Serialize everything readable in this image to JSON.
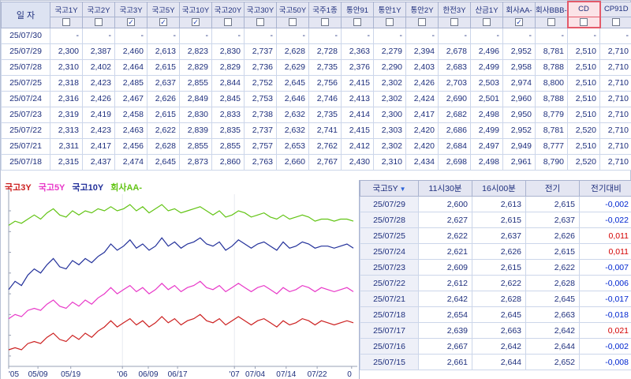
{
  "icons": {
    "check": "✓",
    "sort_down": "▼"
  },
  "top_table": {
    "date_header": "일 자",
    "columns": [
      {
        "label": "국고1Y",
        "checked": false,
        "highlighted": false
      },
      {
        "label": "국고2Y",
        "checked": false,
        "highlighted": false
      },
      {
        "label": "국고3Y",
        "checked": true,
        "highlighted": false
      },
      {
        "label": "국고5Y",
        "checked": true,
        "highlighted": false
      },
      {
        "label": "국고10Y",
        "checked": true,
        "highlighted": false
      },
      {
        "label": "국고20Y",
        "checked": false,
        "highlighted": false
      },
      {
        "label": "국고30Y",
        "checked": false,
        "highlighted": false
      },
      {
        "label": "국고50Y",
        "checked": false,
        "highlighted": false
      },
      {
        "label": "국주1종",
        "checked": false,
        "highlighted": false
      },
      {
        "label": "통안91",
        "checked": false,
        "highlighted": false
      },
      {
        "label": "통안1Y",
        "checked": false,
        "highlighted": false
      },
      {
        "label": "통안2Y",
        "checked": false,
        "highlighted": false
      },
      {
        "label": "한전3Y",
        "checked": false,
        "highlighted": false
      },
      {
        "label": "산금1Y",
        "checked": false,
        "highlighted": false
      },
      {
        "label": "회사AA-",
        "checked": true,
        "highlighted": false
      },
      {
        "label": "회사BBB-",
        "checked": false,
        "highlighted": false
      },
      {
        "label": "CD",
        "checked": false,
        "highlighted": true
      },
      {
        "label": "CP91D",
        "checked": false,
        "highlighted": false
      }
    ],
    "rows": [
      {
        "date": "25/07/30",
        "values": [
          "-",
          "-",
          "-",
          "-",
          "-",
          "-",
          "-",
          "-",
          "-",
          "-",
          "-",
          "-",
          "-",
          "-",
          "-",
          "-",
          "-",
          "-"
        ]
      },
      {
        "date": "25/07/29",
        "values": [
          "2,300",
          "2,387",
          "2,460",
          "2,613",
          "2,823",
          "2,830",
          "2,737",
          "2,628",
          "2,728",
          "2,363",
          "2,279",
          "2,394",
          "2,678",
          "2,496",
          "2,952",
          "8,781",
          "2,510",
          "2,710"
        ]
      },
      {
        "date": "25/07/28",
        "values": [
          "2,310",
          "2,402",
          "2,464",
          "2,615",
          "2,829",
          "2,829",
          "2,736",
          "2,629",
          "2,735",
          "2,376",
          "2,290",
          "2,403",
          "2,683",
          "2,499",
          "2,958",
          "8,788",
          "2,510",
          "2,710"
        ]
      },
      {
        "date": "25/07/25",
        "values": [
          "2,318",
          "2,423",
          "2,485",
          "2,637",
          "2,855",
          "2,844",
          "2,752",
          "2,645",
          "2,756",
          "2,415",
          "2,302",
          "2,426",
          "2,703",
          "2,503",
          "2,974",
          "8,800",
          "2,510",
          "2,710"
        ]
      },
      {
        "date": "25/07/24",
        "values": [
          "2,316",
          "2,426",
          "2,467",
          "2,626",
          "2,849",
          "2,845",
          "2,753",
          "2,646",
          "2,746",
          "2,413",
          "2,302",
          "2,424",
          "2,690",
          "2,501",
          "2,960",
          "8,788",
          "2,510",
          "2,710"
        ]
      },
      {
        "date": "25/07/23",
        "values": [
          "2,319",
          "2,419",
          "2,458",
          "2,615",
          "2,830",
          "2,833",
          "2,738",
          "2,632",
          "2,735",
          "2,414",
          "2,300",
          "2,417",
          "2,682",
          "2,498",
          "2,950",
          "8,779",
          "2,510",
          "2,710"
        ]
      },
      {
        "date": "25/07/22",
        "values": [
          "2,313",
          "2,423",
          "2,463",
          "2,622",
          "2,839",
          "2,835",
          "2,737",
          "2,632",
          "2,741",
          "2,415",
          "2,303",
          "2,420",
          "2,686",
          "2,499",
          "2,952",
          "8,781",
          "2,520",
          "2,710"
        ]
      },
      {
        "date": "25/07/21",
        "values": [
          "2,311",
          "2,417",
          "2,456",
          "2,628",
          "2,855",
          "2,855",
          "2,757",
          "2,653",
          "2,762",
          "2,412",
          "2,302",
          "2,420",
          "2,684",
          "2,497",
          "2,949",
          "8,777",
          "2,510",
          "2,710"
        ]
      },
      {
        "date": "25/07/18",
        "values": [
          "2,315",
          "2,437",
          "2,474",
          "2,645",
          "2,873",
          "2,860",
          "2,763",
          "2,660",
          "2,767",
          "2,430",
          "2,310",
          "2,434",
          "2,698",
          "2,498",
          "2,961",
          "8,790",
          "2,520",
          "2,710"
        ]
      }
    ]
  },
  "right_table": {
    "headers": [
      "국고5Y",
      "11시30분",
      "16시00분",
      "전기",
      "전기대비"
    ],
    "rows": [
      {
        "date": "25/07/29",
        "t1130": "2,600",
        "t1600": "2,613",
        "prev": "2,615",
        "diff": "-0,002"
      },
      {
        "date": "25/07/28",
        "t1130": "2,627",
        "t1600": "2,615",
        "prev": "2,637",
        "diff": "-0,022"
      },
      {
        "date": "25/07/25",
        "t1130": "2,622",
        "t1600": "2,637",
        "prev": "2,626",
        "diff": "0,011"
      },
      {
        "date": "25/07/24",
        "t1130": "2,621",
        "t1600": "2,626",
        "prev": "2,615",
        "diff": "0,011"
      },
      {
        "date": "25/07/23",
        "t1130": "2,609",
        "t1600": "2,615",
        "prev": "2,622",
        "diff": "-0,007"
      },
      {
        "date": "25/07/22",
        "t1130": "2,612",
        "t1600": "2,622",
        "prev": "2,628",
        "diff": "-0,006"
      },
      {
        "date": "25/07/21",
        "t1130": "2,642",
        "t1600": "2,628",
        "prev": "2,645",
        "diff": "-0,017"
      },
      {
        "date": "25/07/18",
        "t1130": "2,654",
        "t1600": "2,645",
        "prev": "2,663",
        "diff": "-0,018"
      },
      {
        "date": "25/07/17",
        "t1130": "2,639",
        "t1600": "2,663",
        "prev": "2,642",
        "diff": "0,021"
      },
      {
        "date": "25/07/16",
        "t1130": "2,667",
        "t1600": "2,642",
        "prev": "2,644",
        "diff": "-0,002"
      },
      {
        "date": "25/07/15",
        "t1130": "2,661",
        "t1600": "2,644",
        "prev": "2,652",
        "diff": "-0,008"
      }
    ]
  },
  "chart_data": {
    "type": "line",
    "title": "",
    "legend": [
      "국고3Y",
      "국고5Y",
      "국고10Y",
      "회사AA-"
    ],
    "legend_position": "top-left",
    "grid": false,
    "ylim": [
      2.25,
      3.08
    ],
    "series": [
      {
        "name": "국고3Y",
        "color": "#cc2020",
        "values": [
          2.33,
          2.34,
          2.33,
          2.36,
          2.37,
          2.36,
          2.39,
          2.41,
          2.38,
          2.37,
          2.4,
          2.38,
          2.41,
          2.39,
          2.42,
          2.44,
          2.47,
          2.44,
          2.46,
          2.48,
          2.45,
          2.47,
          2.44,
          2.46,
          2.49,
          2.46,
          2.48,
          2.45,
          2.47,
          2.48,
          2.5,
          2.47,
          2.46,
          2.48,
          2.45,
          2.47,
          2.49,
          2.47,
          2.45,
          2.47,
          2.48,
          2.46,
          2.44,
          2.47,
          2.45,
          2.46,
          2.48,
          2.47,
          2.45,
          2.47,
          2.46,
          2.45,
          2.46,
          2.47,
          2.46
        ]
      },
      {
        "name": "국고5Y",
        "color": "#e838c8",
        "values": [
          2.48,
          2.5,
          2.49,
          2.52,
          2.53,
          2.52,
          2.55,
          2.57,
          2.54,
          2.53,
          2.56,
          2.54,
          2.57,
          2.55,
          2.58,
          2.6,
          2.63,
          2.6,
          2.62,
          2.64,
          2.61,
          2.63,
          2.6,
          2.62,
          2.65,
          2.62,
          2.64,
          2.61,
          2.63,
          2.64,
          2.66,
          2.63,
          2.62,
          2.64,
          2.61,
          2.63,
          2.65,
          2.63,
          2.61,
          2.63,
          2.64,
          2.62,
          2.6,
          2.63,
          2.61,
          2.62,
          2.64,
          2.63,
          2.61,
          2.63,
          2.62,
          2.61,
          2.62,
          2.63,
          2.61
        ]
      },
      {
        "name": "국고10Y",
        "color": "#22309a",
        "values": [
          2.62,
          2.66,
          2.64,
          2.69,
          2.72,
          2.7,
          2.74,
          2.77,
          2.73,
          2.72,
          2.76,
          2.74,
          2.77,
          2.75,
          2.78,
          2.8,
          2.84,
          2.81,
          2.83,
          2.86,
          2.82,
          2.84,
          2.81,
          2.83,
          2.87,
          2.83,
          2.85,
          2.82,
          2.84,
          2.85,
          2.87,
          2.84,
          2.83,
          2.85,
          2.81,
          2.83,
          2.86,
          2.84,
          2.82,
          2.84,
          2.85,
          2.83,
          2.81,
          2.85,
          2.82,
          2.83,
          2.85,
          2.84,
          2.82,
          2.83,
          2.83,
          2.82,
          2.83,
          2.84,
          2.82
        ]
      },
      {
        "name": "회사AA-",
        "color": "#62c414",
        "values": [
          2.93,
          2.95,
          2.94,
          2.96,
          2.98,
          2.96,
          2.99,
          3.01,
          2.98,
          2.97,
          3.0,
          2.98,
          3.0,
          2.99,
          3.01,
          3.0,
          3.02,
          3.0,
          3.01,
          3.03,
          3.0,
          3.02,
          2.99,
          3.01,
          3.03,
          3.0,
          3.01,
          2.99,
          3.0,
          3.01,
          3.02,
          3.0,
          2.98,
          3.0,
          2.97,
          2.98,
          3.0,
          2.99,
          2.97,
          2.98,
          2.99,
          2.97,
          2.96,
          2.98,
          2.96,
          2.97,
          2.98,
          2.97,
          2.95,
          2.96,
          2.96,
          2.95,
          2.96,
          2.96,
          2.95
        ]
      }
    ],
    "xticks": [
      {
        "label": "'05",
        "f": 0.0
      },
      {
        "label": "05/09",
        "f": 0.085
      },
      {
        "label": "05/19",
        "f": 0.18
      },
      {
        "label": "'06",
        "f": 0.33
      },
      {
        "label": "06/09",
        "f": 0.405
      },
      {
        "label": "06/17",
        "f": 0.49
      },
      {
        "label": "'07",
        "f": 0.655
      },
      {
        "label": "07/04",
        "f": 0.715
      },
      {
        "label": "07/14",
        "f": 0.805
      },
      {
        "label": "07/22",
        "f": 0.895
      },
      {
        "label": "0",
        "f": 0.995
      }
    ]
  }
}
